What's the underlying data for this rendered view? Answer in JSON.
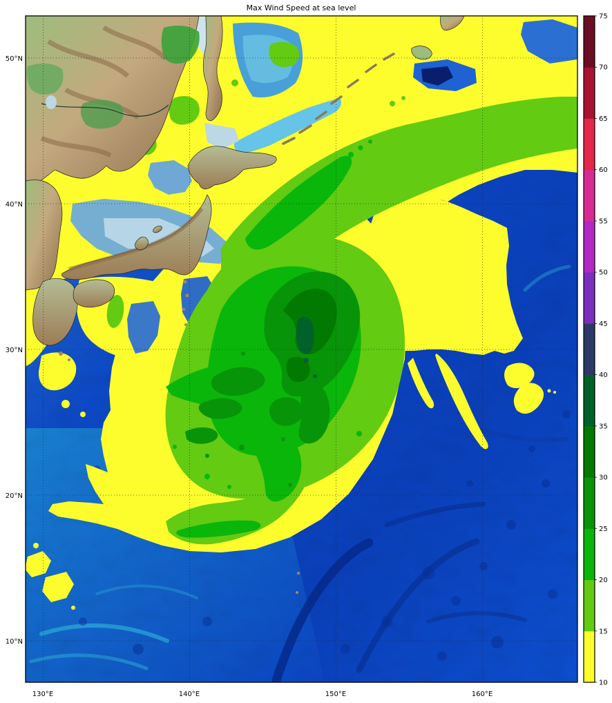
{
  "title": "Max Wind Speed at sea level",
  "axes": {
    "y_ticks": [
      {
        "label": "50°N"
      },
      {
        "label": "40°N"
      },
      {
        "label": "30°N"
      },
      {
        "label": "20°N"
      },
      {
        "label": "10°N"
      }
    ],
    "x_ticks": [
      {
        "label": "130°E"
      },
      {
        "label": "140°E"
      },
      {
        "label": "150°E"
      },
      {
        "label": "160°E"
      }
    ]
  },
  "colorbar": {
    "min": 10,
    "max": 75,
    "step": 5,
    "tick_labels": [
      "10",
      "15",
      "20",
      "25",
      "30",
      "35",
      "40",
      "45",
      "50",
      "55",
      "60",
      "65",
      "70",
      "75"
    ],
    "colors": [
      "#fdfd2e",
      "#62cb12",
      "#0ab60a",
      "#089408",
      "#027a02",
      "#00612a",
      "#2b3a66",
      "#7a2fbe",
      "#b229c4",
      "#d82a93",
      "#e3274a",
      "#a81332",
      "#6b0e24"
    ]
  },
  "chart_data": {
    "type": "heatmap",
    "variant": "filled-contour geographic map over shaded-relief basemap",
    "title": "Max Wind Speed at sea level",
    "x_tick_labels": [
      "130°E",
      "140°E",
      "150°E",
      "160°E"
    ],
    "y_tick_labels": [
      "50°N",
      "40°N",
      "30°N",
      "20°N",
      "10°N"
    ],
    "lon_range_est": [
      128.8,
      166.5
    ],
    "lat_range_est": [
      7.3,
      52.8
    ],
    "grid": "dotted graticule every 10 degrees",
    "legend_position": "vertical colorbar at right",
    "colorbar_levels": [
      10,
      15,
      20,
      25,
      30,
      35,
      40,
      45,
      50,
      55,
      60,
      65,
      70,
      75
    ],
    "colorbar_colors": [
      "#fdfd2e",
      "#62cb12",
      "#0ab60a",
      "#089408",
      "#027a02",
      "#00612a",
      "#2b3a66",
      "#7a2fbe",
      "#b229c4",
      "#d82a93",
      "#e3274a",
      "#a81332",
      "#6b0e24"
    ],
    "visible_contour_bands": [
      {
        "range": "10-15",
        "color": "#fdfd2e",
        "where": "broad outer wind field: Sea of Okhotsk band, seas around Japan, large right-side lobe with pointed streamers and two detached islets near 160°E 27°N, bottom-left spiral arm tip"
      },
      {
        "range": "15-20",
        "color": "#62cb12",
        "where": "ring around storm SE of Japan, diagonal NE rainband running to the map edge near 45°N, bottom spiral arm, scattered patches in Sea of Okhotsk"
      },
      {
        "range": "20-25",
        "color": "#0ab60a",
        "where": "inner storm shield centered near 145°E 28-30°N with SW arm and southern hook; core of NE rainband"
      },
      {
        "range": "25-30",
        "color": "#089408",
        "where": "multi-lobed storm core near 145-147°E 27-31°N"
      },
      {
        "range": "30-40",
        "color": "#027a02",
        "where": "small maxima specks near 146.5°E 29.5-31°N"
      }
    ],
    "storm_center_est": {
      "lon": 146.5,
      "lat": 29.5
    },
    "max_band_reached": "35-40",
    "no_data_below": 10
  }
}
